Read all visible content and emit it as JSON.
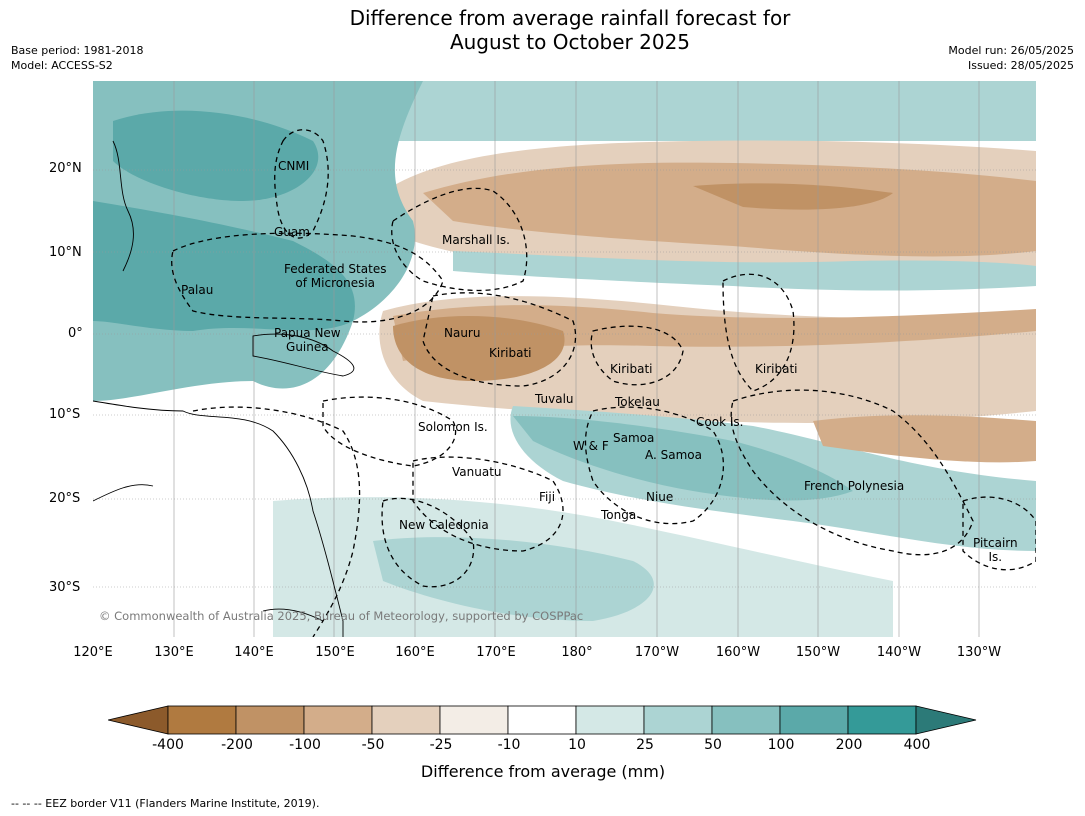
{
  "title": {
    "line1": "Difference from average rainfall forecast for",
    "line2": "August to October 2025"
  },
  "meta": {
    "base_period": "Base period: 1981-2018",
    "model": "Model: ACCESS-S2",
    "model_run": "Model run: 26/05/2025",
    "issued": "Issued: 28/05/2025"
  },
  "map": {
    "lat_labels": [
      "20°N",
      "10°N",
      "0°",
      "10°S",
      "20°S",
      "30°S"
    ],
    "lon_labels": [
      "120°E",
      "130°E",
      "140°E",
      "150°E",
      "160°E",
      "170°E",
      "180°",
      "170°W",
      "160°W",
      "150°W",
      "140°W",
      "130°W"
    ],
    "places": [
      {
        "name": "CNMI",
        "text": "CNMI"
      },
      {
        "name": "guam",
        "text": "Guam"
      },
      {
        "name": "marshall-islands",
        "text": "Marshall Is."
      },
      {
        "name": "micronesia",
        "text": "Federated States\nof Micronesia"
      },
      {
        "name": "palau",
        "text": "Palau"
      },
      {
        "name": "nauru",
        "text": "Nauru"
      },
      {
        "name": "kiribati-west",
        "text": "Kiribati"
      },
      {
        "name": "kiribati-central",
        "text": "Kiribati"
      },
      {
        "name": "kiribati-east",
        "text": "Kiribati"
      },
      {
        "name": "papua-new-guinea",
        "text": "Papua New\nGuinea"
      },
      {
        "name": "tuvalu",
        "text": "Tuvalu"
      },
      {
        "name": "tokelau",
        "text": "Tokelau"
      },
      {
        "name": "cook-islands",
        "text": "Cook Is."
      },
      {
        "name": "solomon-islands",
        "text": "Solomon Is."
      },
      {
        "name": "samoa",
        "text": "Samoa"
      },
      {
        "name": "wallis-futuna",
        "text": "W & F"
      },
      {
        "name": "american-samoa",
        "text": "A. Samoa"
      },
      {
        "name": "vanuatu",
        "text": "Vanuatu"
      },
      {
        "name": "fiji",
        "text": "Fiji"
      },
      {
        "name": "niue",
        "text": "Niue"
      },
      {
        "name": "tonga",
        "text": "Tonga"
      },
      {
        "name": "french-polynesia",
        "text": "French Polynesia"
      },
      {
        "name": "new-caledonia",
        "text": "New Caledonia"
      },
      {
        "name": "pitcairn",
        "text": "Pitcairn\nIs."
      }
    ],
    "copyright": "© Commonwealth of Australia 2025, Bureau of Meteorology, supported by COSPPac"
  },
  "colorbar": {
    "labels": [
      "-400",
      "-200",
      "-100",
      "-50",
      "-25",
      "-10",
      "10",
      "25",
      "50",
      "100",
      "200",
      "400"
    ],
    "colors": [
      "#8c5a2b",
      "#b07a40",
      "#c09265",
      "#d3ad8a",
      "#e4d0bd",
      "#f3ede6",
      "#ffffff",
      "#d4e8e6",
      "#acd4d3",
      "#86c0bf",
      "#5ba9a9",
      "#349a98",
      "#2c7a78"
    ],
    "title": "Difference from average (mm)"
  },
  "footer": "-- -- -- EEZ border V11 (Flanders Marine Institute, 2019)."
}
